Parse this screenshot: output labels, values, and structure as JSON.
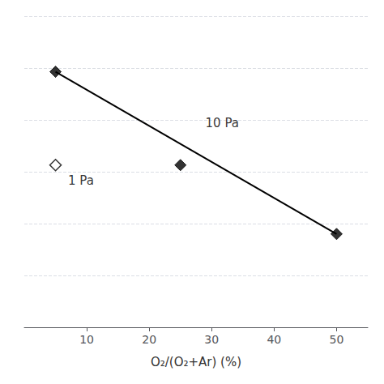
{
  "chart_data": {
    "type": "scatter",
    "xlabel": "O₂/(O₂+Ar) (%)",
    "xlim": [
      0,
      55
    ],
    "xticks": [
      10,
      20,
      30,
      40,
      50
    ],
    "ylim": [
      3.1,
      4.5
    ],
    "yticks": [
      3.1,
      3.3333333333333335,
      3.5666666666666664,
      3.8,
      4.033333333333333,
      4.266666666666667,
      4.5
    ],
    "grid": true,
    "tick_labels": "x",
    "series": [
      {
        "type": "line",
        "color": "black",
        "x": [
          5,
          50
        ],
        "values": [
          4.25,
          3.52
        ]
      },
      {
        "name": "10 Pa",
        "type": "scatter",
        "color": "black",
        "marker": "diamond",
        "x": [
          5,
          25,
          50
        ],
        "values": [
          4.25,
          3.83,
          3.52
        ]
      },
      {
        "name": "1 Pa",
        "type": "scatter",
        "color": "black",
        "marker": "open-diamond",
        "x": [
          5
        ],
        "values": [
          3.83
        ]
      }
    ],
    "annotations": [
      {
        "text": "10 Pa",
        "x": 29,
        "y": 4.02
      },
      {
        "text": "1 Pa",
        "x": 7.0,
        "y": 3.76
      }
    ]
  }
}
